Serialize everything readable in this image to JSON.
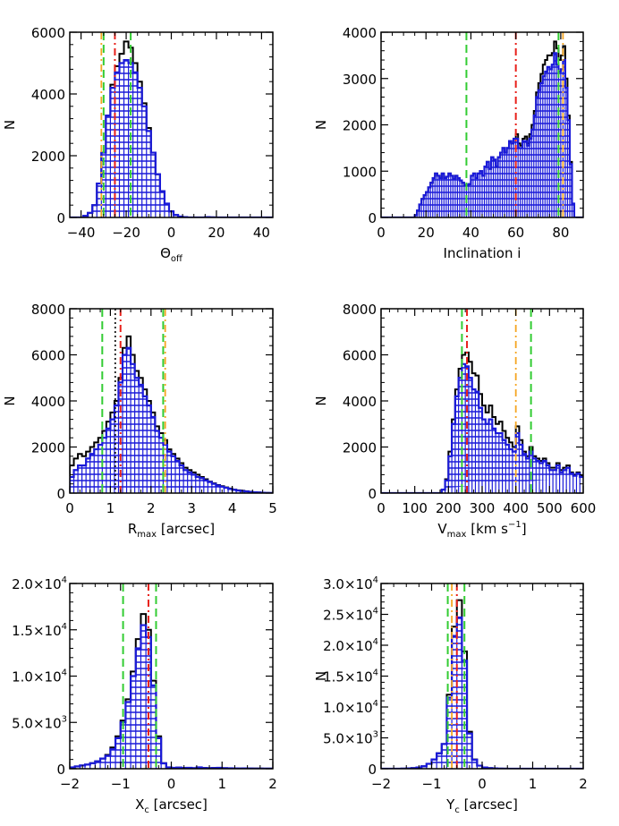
{
  "colors": {
    "hist_black": "#000000",
    "hist_blue": "#1a1ad9",
    "median": "#e8201a",
    "interval": "#33cc33",
    "truth": "#f5a623",
    "dotted": "#000000"
  },
  "chart_data": [
    {
      "type": "bar",
      "xlabel": "Θ",
      "xlabel_sub": "off",
      "xlabel_rest": "",
      "ylabel": "N",
      "xlim": [
        -45,
        45
      ],
      "ylim": [
        0,
        6000
      ],
      "xticks": [
        -40,
        -20,
        0,
        20,
        40
      ],
      "xtick_labels": [
        "−40",
        "−20",
        "0",
        "20",
        "40"
      ],
      "yticks": [
        0,
        2000,
        4000,
        6000
      ],
      "ytick_labels": [
        "0",
        "2000",
        "4000",
        "6000"
      ],
      "bin_start": -45,
      "bin_width": 2,
      "black_values": [
        0,
        0,
        0,
        50,
        150,
        400,
        1100,
        2100,
        3300,
        4300,
        4900,
        5300,
        5700,
        5500,
        5000,
        4400,
        3700,
        2900,
        2100,
        1400,
        850,
        450,
        200,
        80,
        30,
        10,
        0,
        0,
        0,
        0,
        10,
        5,
        0,
        0,
        0,
        0,
        0,
        0,
        0,
        0,
        0,
        0,
        0,
        0,
        0
      ],
      "blue_values": [
        0,
        0,
        0,
        50,
        150,
        400,
        1100,
        2100,
        3300,
        4200,
        4700,
        5000,
        5100,
        5000,
        4700,
        4200,
        3600,
        2800,
        2100,
        1400,
        850,
        450,
        200,
        80,
        30,
        10,
        0,
        0,
        0,
        0,
        10,
        5,
        0,
        0,
        0,
        0,
        0,
        0,
        0,
        0,
        0,
        0,
        0,
        0,
        0
      ],
      "vlines": [
        {
          "x": -30,
          "kind": "interval"
        },
        {
          "x": -18,
          "kind": "interval"
        },
        {
          "x": -25,
          "kind": "median"
        },
        {
          "x": -31,
          "kind": "truth"
        }
      ]
    },
    {
      "type": "bar",
      "xlabel": "Inclination i",
      "xlabel_sub": "",
      "xlabel_rest": "",
      "ylabel": "N",
      "xlim": [
        0,
        90
      ],
      "ylim": [
        0,
        4000
      ],
      "xticks": [
        0,
        20,
        40,
        60,
        80
      ],
      "xtick_labels": [
        "0",
        "20",
        "40",
        "60",
        "80"
      ],
      "yticks": [
        0,
        1000,
        2000,
        3000,
        4000
      ],
      "ytick_labels": [
        "0",
        "1000",
        "2000",
        "3000",
        "4000"
      ],
      "bin_start": 0,
      "bin_width": 1,
      "black_values": [
        0,
        0,
        0,
        0,
        0,
        0,
        0,
        0,
        0,
        0,
        0,
        0,
        0,
        0,
        0,
        50,
        150,
        280,
        400,
        480,
        550,
        650,
        750,
        850,
        950,
        900,
        850,
        950,
        850,
        880,
        950,
        900,
        830,
        900,
        850,
        800,
        750,
        700,
        700,
        720,
        900,
        950,
        850,
        950,
        1000,
        900,
        1100,
        1200,
        1050,
        1300,
        1250,
        1100,
        1300,
        1400,
        1500,
        1400,
        1500,
        1650,
        1600,
        1700,
        1800,
        1600,
        1550,
        1700,
        1750,
        1600,
        1800,
        2000,
        2300,
        2700,
        2900,
        3100,
        3300,
        3400,
        3500,
        3500,
        3550,
        3800,
        3650,
        3400,
        3500,
        3700,
        3000,
        2200,
        1200,
        300,
        0,
        0,
        0,
        0
      ],
      "blue_values": [
        0,
        0,
        0,
        0,
        0,
        0,
        0,
        0,
        0,
        0,
        0,
        0,
        0,
        0,
        0,
        50,
        150,
        280,
        400,
        480,
        550,
        650,
        750,
        850,
        950,
        900,
        850,
        950,
        850,
        880,
        950,
        900,
        830,
        900,
        850,
        800,
        750,
        700,
        700,
        720,
        900,
        950,
        850,
        950,
        1000,
        900,
        1100,
        1200,
        1050,
        1300,
        1250,
        1100,
        1300,
        1400,
        1500,
        1400,
        1500,
        1650,
        1600,
        1700,
        1700,
        1500,
        1500,
        1650,
        1650,
        1550,
        1700,
        1900,
        2200,
        2600,
        2750,
        2900,
        3050,
        3150,
        3250,
        3200,
        3300,
        3550,
        3300,
        3150,
        3200,
        3400,
        2800,
        2100,
        1150,
        300,
        0,
        0,
        0,
        0
      ],
      "vlines": [
        {
          "x": 38,
          "kind": "interval"
        },
        {
          "x": 79,
          "kind": "interval"
        },
        {
          "x": 60,
          "kind": "median"
        },
        {
          "x": 81,
          "kind": "truth"
        }
      ]
    },
    {
      "type": "bar",
      "xlabel": "R",
      "xlabel_sub": "max",
      "xlabel_rest": " [arcsec]",
      "ylabel": "N",
      "xlim": [
        0,
        5
      ],
      "ylim": [
        0,
        8000
      ],
      "xticks": [
        0,
        1,
        2,
        3,
        4,
        5
      ],
      "xtick_labels": [
        "0",
        "1",
        "2",
        "3",
        "4",
        "5"
      ],
      "yticks": [
        0,
        2000,
        4000,
        6000,
        8000
      ],
      "ytick_labels": [
        "0",
        "2000",
        "4000",
        "6000",
        "8000"
      ],
      "bin_start": 0,
      "bin_width": 0.1,
      "black_values": [
        1200,
        1500,
        1700,
        1600,
        1800,
        2000,
        2200,
        2400,
        2700,
        3100,
        3500,
        4000,
        5000,
        6300,
        6800,
        6000,
        5300,
        5000,
        4500,
        4000,
        3500,
        2900,
        2600,
        2300,
        1900,
        1700,
        1500,
        1300,
        1100,
        1000,
        900,
        800,
        700,
        600,
        500,
        420,
        350,
        300,
        250,
        200,
        150,
        120,
        100,
        80,
        60,
        40,
        30,
        20,
        10,
        5
      ],
      "blue_values": [
        700,
        1000,
        1200,
        1200,
        1500,
        1700,
        1900,
        2100,
        2400,
        2800,
        3200,
        3800,
        4800,
        6000,
        6300,
        5600,
        5000,
        4700,
        4200,
        3800,
        3300,
        2700,
        2400,
        2100,
        1800,
        1600,
        1400,
        1200,
        1000,
        900,
        800,
        700,
        650,
        550,
        480,
        400,
        330,
        280,
        230,
        180,
        140,
        110,
        90,
        70,
        50,
        35,
        25,
        15,
        8,
        5
      ],
      "vlines": [
        {
          "x": 0.8,
          "kind": "interval"
        },
        {
          "x": 2.3,
          "kind": "interval"
        },
        {
          "x": 1.25,
          "kind": "median"
        },
        {
          "x": 1.12,
          "kind": "dotted"
        },
        {
          "x": 2.35,
          "kind": "truth"
        }
      ]
    },
    {
      "type": "bar",
      "xlabel": "V",
      "xlabel_sub": "max",
      "xlabel_rest": " [km s",
      "xlabel_sup": "−1",
      "xlabel_end": "]",
      "ylabel": "N",
      "xlim": [
        0,
        600
      ],
      "ylim": [
        0,
        8000
      ],
      "xticks": [
        0,
        100,
        200,
        300,
        400,
        500,
        600
      ],
      "xtick_labels": [
        "0",
        "100",
        "200",
        "300",
        "400",
        "500",
        "600"
      ],
      "yticks": [
        0,
        2000,
        4000,
        6000,
        8000
      ],
      "ytick_labels": [
        "0",
        "2000",
        "4000",
        "6000",
        "8000"
      ],
      "bin_start": 0,
      "bin_width": 10,
      "black_values": [
        0,
        0,
        0,
        0,
        0,
        0,
        0,
        0,
        0,
        0,
        0,
        0,
        0,
        0,
        0,
        0,
        0,
        0,
        150,
        600,
        1800,
        3200,
        4500,
        5400,
        6000,
        6100,
        5700,
        5200,
        5100,
        4300,
        3800,
        3500,
        3800,
        3300,
        3000,
        3100,
        2700,
        2400,
        2200,
        2000,
        2900,
        2300,
        1800,
        1600,
        2000,
        1600,
        1500,
        1400,
        1500,
        1300,
        1100,
        1100,
        1300,
        1000,
        1100,
        1200,
        900,
        800,
        900,
        750
      ],
      "blue_values": [
        0,
        0,
        0,
        0,
        0,
        0,
        0,
        0,
        0,
        0,
        0,
        0,
        0,
        0,
        0,
        0,
        0,
        0,
        150,
        550,
        1600,
        3000,
        4200,
        5000,
        5600,
        5500,
        5000,
        4500,
        4400,
        3700,
        3200,
        3000,
        3200,
        2800,
        2600,
        2600,
        2300,
        2100,
        1900,
        1800,
        2600,
        2100,
        1700,
        1500,
        1800,
        1500,
        1400,
        1300,
        1400,
        1200,
        1000,
        1000,
        1200,
        900,
        1000,
        1100,
        850,
        750,
        850,
        700
      ],
      "vlines": [
        {
          "x": 240,
          "kind": "interval"
        },
        {
          "x": 445,
          "kind": "interval"
        },
        {
          "x": 255,
          "kind": "median"
        },
        {
          "x": 400,
          "kind": "truth"
        }
      ]
    },
    {
      "type": "bar",
      "xlabel": "X",
      "xlabel_sub": "c",
      "xlabel_rest": " [arcsec]",
      "ylabel": "",
      "xlim": [
        -2,
        2
      ],
      "ylim": [
        0,
        20000
      ],
      "xticks": [
        -2,
        -1,
        0,
        1,
        2
      ],
      "xtick_labels": [
        "−2",
        "−1",
        "0",
        "1",
        "2"
      ],
      "yticks": [
        0,
        5000,
        10000,
        15000,
        20000
      ],
      "ytick_mant": [
        "0",
        "5.0×10",
        "1.0×10",
        "1.5×10",
        "2.0×10"
      ],
      "ytick_exp": [
        "",
        "3",
        "4",
        "4",
        "4"
      ],
      "bin_start": -2,
      "bin_width": 0.1,
      "black_values": [
        150,
        250,
        350,
        450,
        600,
        800,
        1100,
        1500,
        2300,
        3500,
        5200,
        7500,
        10500,
        14000,
        16700,
        15000,
        9500,
        3500,
        600,
        150,
        100,
        120,
        80,
        100,
        60,
        150,
        80,
        60,
        80,
        100,
        60,
        50,
        40,
        30,
        40,
        30,
        20,
        20,
        15,
        10
      ],
      "blue_values": [
        150,
        250,
        350,
        450,
        600,
        800,
        1100,
        1400,
        2100,
        3300,
        5000,
        7200,
        10000,
        13000,
        15500,
        14200,
        9000,
        3300,
        580,
        150,
        100,
        120,
        80,
        100,
        60,
        150,
        80,
        60,
        80,
        100,
        60,
        50,
        40,
        30,
        40,
        30,
        20,
        20,
        15,
        10
      ],
      "vlines": [
        {
          "x": -0.95,
          "kind": "interval"
        },
        {
          "x": -0.3,
          "kind": "interval"
        },
        {
          "x": -0.45,
          "kind": "median"
        }
      ]
    },
    {
      "type": "bar",
      "xlabel": "Y",
      "xlabel_sub": "c",
      "xlabel_rest": " [arcsec]",
      "ylabel": "N",
      "xlim": [
        -2,
        2
      ],
      "ylim": [
        0,
        30000
      ],
      "xticks": [
        -2,
        -1,
        0,
        1,
        2
      ],
      "xtick_labels": [
        "−2",
        "−1",
        "0",
        "1",
        "2"
      ],
      "yticks": [
        0,
        5000,
        10000,
        15000,
        20000,
        25000,
        30000
      ],
      "ytick_mant": [
        "0",
        "5.0×10",
        "1.0×10",
        "1.5×10",
        "2.0×10",
        "2.5×10",
        "3.0×10"
      ],
      "ytick_exp": [
        "",
        "3",
        "4",
        "4",
        "4",
        "4",
        "4"
      ],
      "bin_start": -2,
      "bin_width": 0.1,
      "black_values": [
        0,
        0,
        0,
        0,
        20,
        50,
        100,
        200,
        400,
        800,
        1500,
        2500,
        4000,
        12000,
        23000,
        27300,
        19000,
        6000,
        1500,
        500,
        200,
        100,
        50,
        20,
        10,
        5,
        0,
        0,
        0,
        0,
        0,
        0,
        0,
        0,
        0,
        0,
        0,
        0,
        0,
        0
      ],
      "blue_values": [
        0,
        0,
        0,
        0,
        20,
        50,
        100,
        200,
        400,
        800,
        1500,
        2500,
        4000,
        11500,
        21500,
        24500,
        17500,
        5700,
        1450,
        500,
        200,
        100,
        50,
        20,
        10,
        5,
        0,
        0,
        0,
        0,
        0,
        0,
        0,
        0,
        0,
        0,
        0,
        0,
        0,
        0
      ],
      "vlines": [
        {
          "x": -0.68,
          "kind": "interval"
        },
        {
          "x": -0.35,
          "kind": "interval"
        },
        {
          "x": -0.5,
          "kind": "median"
        },
        {
          "x": -0.6,
          "kind": "truth"
        }
      ]
    }
  ]
}
